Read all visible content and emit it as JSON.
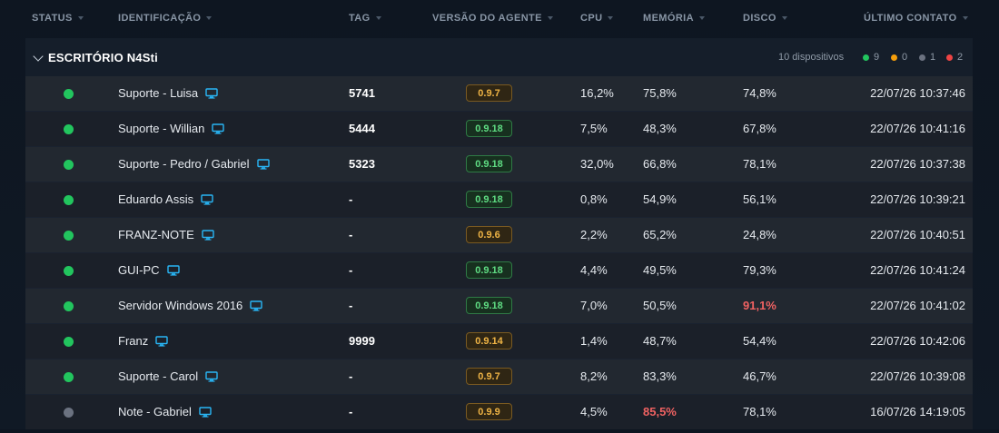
{
  "columns": {
    "status": "STATUS",
    "identificacao": "IDENTIFICAÇÃO",
    "tag": "TAG",
    "versao": "VERSÃO DO AGENTE",
    "cpu": "CPU",
    "memoria": "MEMÓRIA",
    "disco": "DISCO",
    "ultimo_contato": "ÚLTIMO CONTATO"
  },
  "group": {
    "title": "ESCRITÓRIO N4Sti",
    "count_label": "10 dispositivos",
    "legend": [
      {
        "color": "#22c55e",
        "count": "9"
      },
      {
        "color": "#f59e0b",
        "count": "0"
      },
      {
        "color": "#6b7280",
        "count": "1"
      },
      {
        "color": "#ef4444",
        "count": "2"
      }
    ]
  },
  "colors": {
    "online": "#22c55e",
    "offline": "#6b7280",
    "warning": "#f59e0b",
    "critical": "#ef4444",
    "monitor_icon": "#29b6f6"
  },
  "devices": [
    {
      "status": "online",
      "name": "Suporte - Luisa",
      "tag": "5741",
      "version": "0.9.7",
      "version_state": "warn",
      "cpu": "16,2%",
      "memory": "75,8%",
      "disk": "74,8%",
      "last_contact": "22/07/26 10:37:46",
      "mem_alert": false,
      "disk_alert": false
    },
    {
      "status": "online",
      "name": "Suporte - Willian",
      "tag": "5444",
      "version": "0.9.18",
      "version_state": "ok",
      "cpu": "7,5%",
      "memory": "48,3%",
      "disk": "67,8%",
      "last_contact": "22/07/26 10:41:16",
      "mem_alert": false,
      "disk_alert": false
    },
    {
      "status": "online",
      "name": "Suporte - Pedro / Gabriel",
      "tag": "5323",
      "version": "0.9.18",
      "version_state": "ok",
      "cpu": "32,0%",
      "memory": "66,8%",
      "disk": "78,1%",
      "last_contact": "22/07/26 10:37:38",
      "mem_alert": false,
      "disk_alert": false
    },
    {
      "status": "online",
      "name": "Eduardo Assis",
      "tag": "-",
      "version": "0.9.18",
      "version_state": "ok",
      "cpu": "0,8%",
      "memory": "54,9%",
      "disk": "56,1%",
      "last_contact": "22/07/26 10:39:21",
      "mem_alert": false,
      "disk_alert": false
    },
    {
      "status": "online",
      "name": "FRANZ-NOTE",
      "tag": "-",
      "version": "0.9.6",
      "version_state": "warn",
      "cpu": "2,2%",
      "memory": "65,2%",
      "disk": "24,8%",
      "last_contact": "22/07/26 10:40:51",
      "mem_alert": false,
      "disk_alert": false
    },
    {
      "status": "online",
      "name": "GUI-PC",
      "tag": "-",
      "version": "0.9.18",
      "version_state": "ok",
      "cpu": "4,4%",
      "memory": "49,5%",
      "disk": "79,3%",
      "last_contact": "22/07/26 10:41:24",
      "mem_alert": false,
      "disk_alert": false
    },
    {
      "status": "online",
      "name": "Servidor Windows 2016",
      "tag": "-",
      "version": "0.9.18",
      "version_state": "ok",
      "cpu": "7,0%",
      "memory": "50,5%",
      "disk": "91,1%",
      "last_contact": "22/07/26 10:41:02",
      "mem_alert": false,
      "disk_alert": true
    },
    {
      "status": "online",
      "name": "Franz",
      "tag": "9999",
      "version": "0.9.14",
      "version_state": "warn",
      "cpu": "1,4%",
      "memory": "48,7%",
      "disk": "54,4%",
      "last_contact": "22/07/26 10:42:06",
      "mem_alert": false,
      "disk_alert": false
    },
    {
      "status": "online",
      "name": "Suporte - Carol",
      "tag": "-",
      "version": "0.9.7",
      "version_state": "warn",
      "cpu": "8,2%",
      "memory": "83,3%",
      "disk": "46,7%",
      "last_contact": "22/07/26 10:39:08",
      "mem_alert": false,
      "disk_alert": false
    },
    {
      "status": "offline",
      "name": "Note - Gabriel",
      "tag": "-",
      "version": "0.9.9",
      "version_state": "warn",
      "cpu": "4,5%",
      "memory": "85,5%",
      "disk": "78,1%",
      "last_contact": "16/07/26 14:19:05",
      "mem_alert": true,
      "disk_alert": false
    }
  ]
}
